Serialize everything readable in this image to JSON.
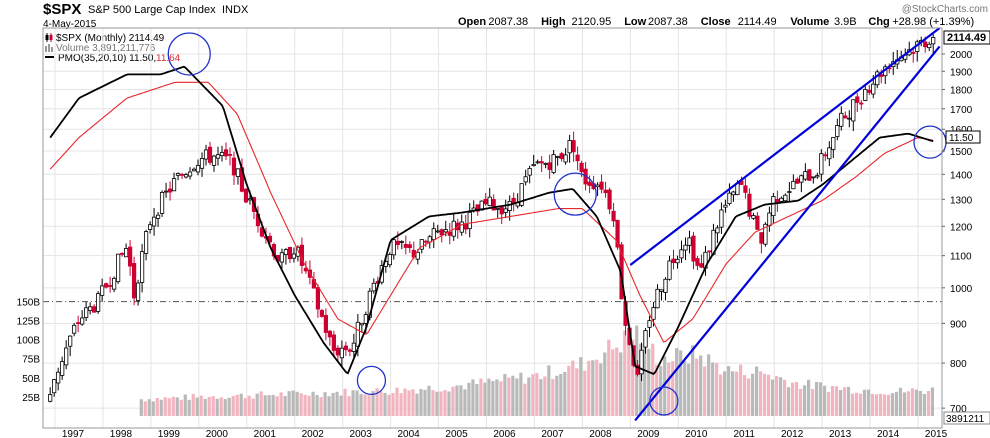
{
  "header": {
    "symbol": "$SPX",
    "name": "S&P 500 Large Cap Index",
    "exchange": "INDX",
    "date": "4-May-2015",
    "credit": "@StockCharts.com",
    "stats": [
      {
        "label": "Open",
        "value": "2087.38"
      },
      {
        "label": "High",
        "value": "2120.95"
      },
      {
        "label": "Low",
        "value": "2087.38"
      },
      {
        "label": "Close",
        "value": "2114.49"
      },
      {
        "label": "Volume",
        "value": "3.9B"
      },
      {
        "label": "Chg",
        "value": "+28.98 (+1.39%)",
        "arrow": "up"
      }
    ]
  },
  "legend": {
    "price": "$SPX (Monthly) 2114.49",
    "volume": "Volume 3,891,211,776",
    "pmo_label": "PMO(35,20,10) 11.50,",
    "pmo_signal": "11.64"
  },
  "price_box": "2114.49",
  "pmo_box": "11.50",
  "volume_box": "3891211",
  "colors": {
    "up": "#000000",
    "down": "#cc0033",
    "pmo": "#000000",
    "signal": "#e8262b",
    "trendline": "#0000dd",
    "circle": "#2233cc",
    "volume_up": "#b9b9b9",
    "volume_down": "#f2b5c0",
    "grid": "#e4e4e4",
    "dashdot": "#555555"
  },
  "chart_data": {
    "type": "candlestick",
    "title": "$SPX S&P 500 Large Cap Index INDX",
    "period": "Monthly",
    "y_scale": "log",
    "ylim": [
      660,
      2160
    ],
    "price_ticks": [
      "700",
      "800",
      "900",
      "1000",
      "1100",
      "1200",
      "1300",
      "1400",
      "1500",
      "1600",
      "1700",
      "1800",
      "1900",
      "2000"
    ],
    "volume_ticks": [
      "25B",
      "50B",
      "75B",
      "100B",
      "125B",
      "150B"
    ],
    "volume_max": 165,
    "x_labels": [
      "1997",
      "1998",
      "1999",
      "2000",
      "2001",
      "2002",
      "2003",
      "2004",
      "2005",
      "2006",
      "2007",
      "2008",
      "2009",
      "2010",
      "2011",
      "2012",
      "2013",
      "2014",
      "2015"
    ],
    "price_anchors": [
      {
        "t": 1996.9,
        "c": 740
      },
      {
        "t": 1997.5,
        "c": 910
      },
      {
        "t": 1997.9,
        "c": 960
      },
      {
        "t": 1998.5,
        "c": 1130
      },
      {
        "t": 1998.65,
        "c": 980
      },
      {
        "t": 1999.0,
        "c": 1230
      },
      {
        "t": 1999.5,
        "c": 1370
      },
      {
        "t": 1999.95,
        "c": 1460
      },
      {
        "t": 2000.3,
        "c": 1480
      },
      {
        "t": 2000.7,
        "c": 1450
      },
      {
        "t": 2000.95,
        "c": 1320
      },
      {
        "t": 2001.3,
        "c": 1200
      },
      {
        "t": 2001.7,
        "c": 1080
      },
      {
        "t": 2002.0,
        "c": 1130
      },
      {
        "t": 2002.5,
        "c": 940
      },
      {
        "t": 2002.8,
        "c": 830
      },
      {
        "t": 2003.2,
        "c": 840
      },
      {
        "t": 2003.6,
        "c": 990
      },
      {
        "t": 2004.0,
        "c": 1130
      },
      {
        "t": 2004.5,
        "c": 1110
      },
      {
        "t": 2005.0,
        "c": 1180
      },
      {
        "t": 2005.5,
        "c": 1210
      },
      {
        "t": 2006.0,
        "c": 1280
      },
      {
        "t": 2006.5,
        "c": 1270
      },
      {
        "t": 2007.0,
        "c": 1430
      },
      {
        "t": 2007.5,
        "c": 1470
      },
      {
        "t": 2007.8,
        "c": 1540
      },
      {
        "t": 2008.0,
        "c": 1380
      },
      {
        "t": 2008.4,
        "c": 1360
      },
      {
        "t": 2008.65,
        "c": 1250
      },
      {
        "t": 2008.85,
        "c": 930
      },
      {
        "t": 2009.15,
        "c": 760
      },
      {
        "t": 2009.4,
        "c": 920
      },
      {
        "t": 2009.8,
        "c": 1070
      },
      {
        "t": 2010.2,
        "c": 1170
      },
      {
        "t": 2010.45,
        "c": 1040
      },
      {
        "t": 2010.9,
        "c": 1250
      },
      {
        "t": 2011.3,
        "c": 1360
      },
      {
        "t": 2011.7,
        "c": 1140
      },
      {
        "t": 2012.0,
        "c": 1310
      },
      {
        "t": 2012.45,
        "c": 1360
      },
      {
        "t": 2012.9,
        "c": 1420
      },
      {
        "t": 2013.4,
        "c": 1640
      },
      {
        "t": 2013.9,
        "c": 1800
      },
      {
        "t": 2014.4,
        "c": 1950
      },
      {
        "t": 2014.8,
        "c": 2020
      },
      {
        "t": 2015.33,
        "c": 2114
      }
    ],
    "volume_anchors": [
      {
        "t": 1998.7,
        "v": 0
      },
      {
        "t": 1998.8,
        "v": 22
      },
      {
        "t": 2000.0,
        "v": 25
      },
      {
        "t": 2002.5,
        "v": 30
      },
      {
        "t": 2004.0,
        "v": 33
      },
      {
        "t": 2005.5,
        "v": 40
      },
      {
        "t": 2007.0,
        "v": 52
      },
      {
        "t": 2008.0,
        "v": 68
      },
      {
        "t": 2008.85,
        "v": 98
      },
      {
        "t": 2009.15,
        "v": 110
      },
      {
        "t": 2009.6,
        "v": 75
      },
      {
        "t": 2010.4,
        "v": 80
      },
      {
        "t": 2011.0,
        "v": 60
      },
      {
        "t": 2011.7,
        "v": 58
      },
      {
        "t": 2012.5,
        "v": 42
      },
      {
        "t": 2013.5,
        "v": 36
      },
      {
        "t": 2014.5,
        "v": 32
      },
      {
        "t": 2015.33,
        "v": 34
      }
    ],
    "pmo_anchors": [
      {
        "t": 1996.9,
        "v": 12
      },
      {
        "t": 1997.5,
        "v": 17
      },
      {
        "t": 1998.5,
        "v": 20
      },
      {
        "t": 1999.2,
        "v": 20
      },
      {
        "t": 1999.7,
        "v": 21
      },
      {
        "t": 2000.5,
        "v": 16
      },
      {
        "t": 2001.0,
        "v": 6
      },
      {
        "t": 2001.5,
        "v": -2
      },
      {
        "t": 2002.0,
        "v": -8
      },
      {
        "t": 2002.6,
        "v": -14
      },
      {
        "t": 2003.1,
        "v": -18
      },
      {
        "t": 2003.5,
        "v": -12
      },
      {
        "t": 2004.0,
        "v": -1
      },
      {
        "t": 2004.8,
        "v": 2
      },
      {
        "t": 2005.5,
        "v": 2.5
      },
      {
        "t": 2006.5,
        "v": 3.5
      },
      {
        "t": 2007.3,
        "v": 5
      },
      {
        "t": 2007.8,
        "v": 5.5
      },
      {
        "t": 2008.3,
        "v": 2
      },
      {
        "t": 2008.8,
        "v": -5
      },
      {
        "t": 2009.1,
        "v": -17
      },
      {
        "t": 2009.5,
        "v": -18
      },
      {
        "t": 2010.0,
        "v": -12
      },
      {
        "t": 2010.6,
        "v": -4
      },
      {
        "t": 2011.2,
        "v": 2
      },
      {
        "t": 2011.8,
        "v": 3.5
      },
      {
        "t": 2012.5,
        "v": 4
      },
      {
        "t": 2013.0,
        "v": 6
      },
      {
        "t": 2013.6,
        "v": 9
      },
      {
        "t": 2014.2,
        "v": 12
      },
      {
        "t": 2014.8,
        "v": 12.5
      },
      {
        "t": 2015.33,
        "v": 11.5
      }
    ],
    "signal_anchors": [
      {
        "t": 1996.9,
        "v": 8
      },
      {
        "t": 1997.5,
        "v": 12
      },
      {
        "t": 1998.5,
        "v": 17
      },
      {
        "t": 1999.5,
        "v": 19
      },
      {
        "t": 2000.2,
        "v": 19
      },
      {
        "t": 2000.8,
        "v": 15
      },
      {
        "t": 2001.5,
        "v": 5
      },
      {
        "t": 2002.2,
        "v": -4
      },
      {
        "t": 2002.9,
        "v": -11
      },
      {
        "t": 2003.5,
        "v": -13
      },
      {
        "t": 2004.0,
        "v": -8
      },
      {
        "t": 2004.6,
        "v": -2
      },
      {
        "t": 2005.5,
        "v": 1
      },
      {
        "t": 2006.5,
        "v": 2
      },
      {
        "t": 2007.5,
        "v": 3
      },
      {
        "t": 2008.0,
        "v": 3
      },
      {
        "t": 2008.7,
        "v": -1
      },
      {
        "t": 2009.2,
        "v": -8
      },
      {
        "t": 2009.7,
        "v": -14
      },
      {
        "t": 2010.3,
        "v": -11
      },
      {
        "t": 2011.0,
        "v": -4
      },
      {
        "t": 2011.6,
        "v": 0
      },
      {
        "t": 2012.3,
        "v": 2
      },
      {
        "t": 2013.0,
        "v": 4
      },
      {
        "t": 2013.7,
        "v": 7
      },
      {
        "t": 2014.3,
        "v": 10
      },
      {
        "t": 2015.0,
        "v": 12
      },
      {
        "t": 2015.33,
        "v": 11.64
      }
    ],
    "pmo_range": [
      -20,
      25
    ],
    "dashdot_level": 960,
    "trendlines": [
      {
        "name": "upper-channel",
        "t1": 2009.0,
        "p1": 1070,
        "t2": 2015.45,
        "p2": 2160
      },
      {
        "name": "lower-channel",
        "t1": 2009.1,
        "p1": 675,
        "t2": 2015.45,
        "p2": 2045
      }
    ],
    "circles": [
      {
        "name": "pmo-peak-2000",
        "t": 1999.8,
        "p": 2000,
        "rx": 21,
        "ry": 21
      },
      {
        "name": "pmo-trough-2003",
        "t": 2003.6,
        "p": 760,
        "rx": 14,
        "ry": 14
      },
      {
        "name": "pmo-peak-2007",
        "t": 2007.85,
        "p": 1320,
        "rx": 21,
        "ry": 21
      },
      {
        "name": "pmo-trough-2009",
        "t": 2009.7,
        "p": 715,
        "rx": 14,
        "ry": 14
      },
      {
        "name": "pmo-current-2015",
        "t": 2015.25,
        "p": 1540,
        "rx": 16,
        "ry": 16
      }
    ]
  }
}
